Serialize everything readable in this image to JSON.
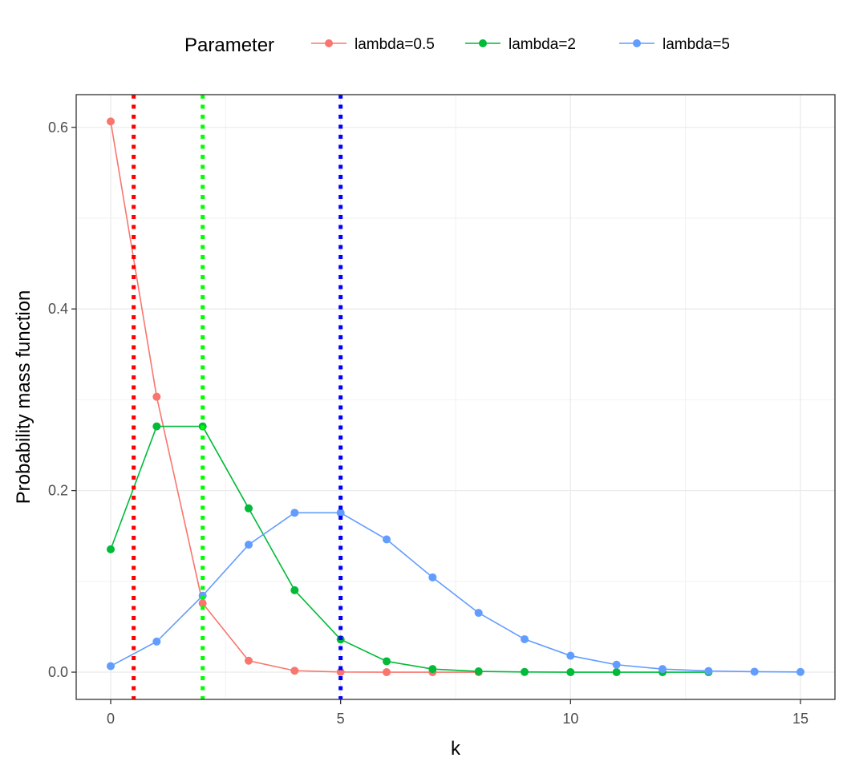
{
  "chart_data": {
    "type": "line",
    "title": "",
    "xlabel": "k",
    "ylabel": "Probability mass function",
    "xlim": [
      -0.75,
      15.75
    ],
    "ylim": [
      -0.03,
      0.636
    ],
    "x_ticks": [
      0,
      5,
      10,
      15
    ],
    "x_tick_labels": [
      "0",
      "5",
      "10",
      "15"
    ],
    "y_ticks": [
      0.0,
      0.2,
      0.4,
      0.6
    ],
    "y_tick_labels": [
      "0.0",
      "0.2",
      "0.4",
      "0.6"
    ],
    "grid": true,
    "legend": {
      "title": "Parameter",
      "position": "top"
    },
    "series": [
      {
        "name": "lambda=0.5",
        "color": "#F8766D",
        "x": [
          0,
          1,
          2,
          3,
          4,
          5,
          6,
          7,
          8
        ],
        "y": [
          0.6065,
          0.3033,
          0.0758,
          0.0126,
          0.0016,
          0.0002,
          0.0,
          0.0,
          0.0
        ]
      },
      {
        "name": "lambda=2",
        "color": "#00BA38",
        "x": [
          0,
          1,
          2,
          3,
          4,
          5,
          6,
          7,
          8,
          9,
          10,
          11,
          12,
          13
        ],
        "y": [
          0.1353,
          0.2707,
          0.2707,
          0.1804,
          0.0902,
          0.0361,
          0.012,
          0.0034,
          0.0009,
          0.0002,
          0.0,
          0.0,
          0.0,
          0.0
        ]
      },
      {
        "name": "lambda=5",
        "color": "#619CFF",
        "x": [
          0,
          1,
          2,
          3,
          4,
          5,
          6,
          7,
          8,
          9,
          10,
          11,
          12,
          13,
          14,
          15
        ],
        "y": [
          0.0067,
          0.0337,
          0.0842,
          0.1404,
          0.1755,
          0.1755,
          0.1462,
          0.1044,
          0.0653,
          0.0363,
          0.0181,
          0.0082,
          0.0034,
          0.0013,
          0.0005,
          0.0002
        ]
      }
    ],
    "vlines": [
      {
        "x": 0.5,
        "color": "#FF0000",
        "style": "dotted"
      },
      {
        "x": 2,
        "color": "#00FF00",
        "style": "dotted"
      },
      {
        "x": 5,
        "color": "#0000FF",
        "style": "dotted"
      }
    ]
  }
}
